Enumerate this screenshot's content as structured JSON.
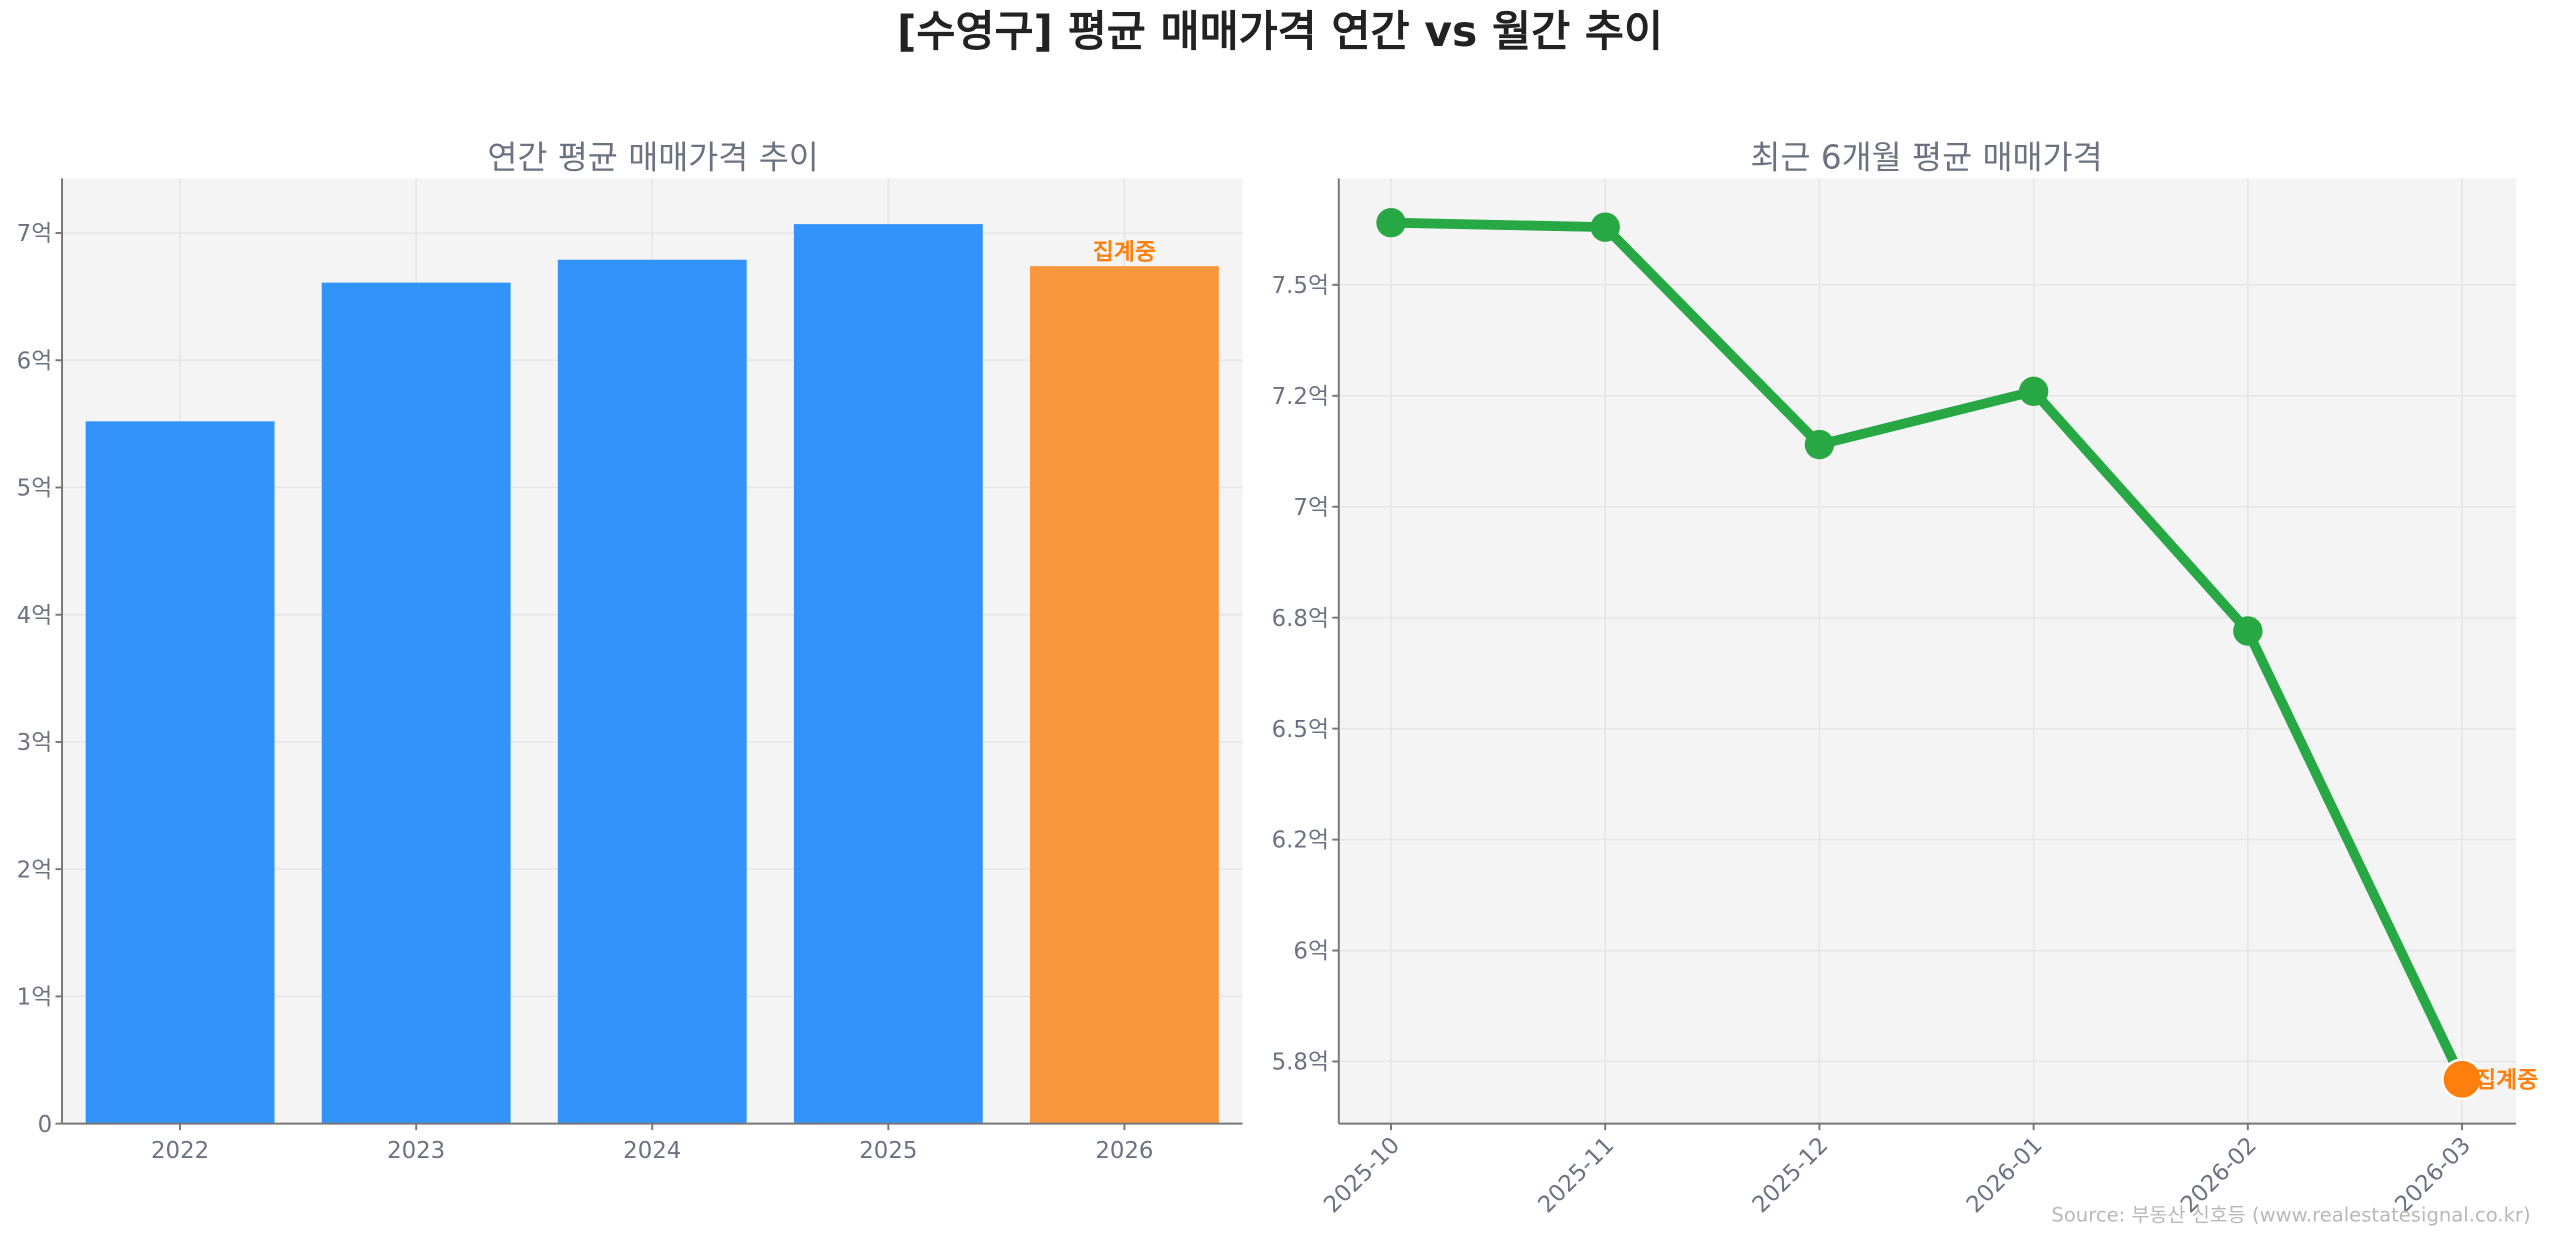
{
  "title": "[수영구] 평균 매매가격 연간 vs 월간 추이",
  "source": "Source: 부동산 신호등 (www.realestatesignal.co.kr)",
  "colors": {
    "bar": "#3293fb",
    "bar_partial": "#f9973f",
    "line": "#28a745",
    "partial_point": "#ff7f0e",
    "plot_bg": "#f4f4f4"
  },
  "chart_data": [
    {
      "type": "bar",
      "title": "연간 평균 매매가격 추이",
      "categories": [
        "2022",
        "2023",
        "2024",
        "2025",
        "2026"
      ],
      "values": [
        5.52,
        6.61,
        6.79,
        7.07,
        6.74
      ],
      "partial_index": 4,
      "partial_label": "집계중",
      "ylim": [
        0,
        7.43
      ],
      "yticks": [
        0,
        1,
        2,
        3,
        4,
        5,
        6,
        7
      ],
      "ytick_labels": [
        "0",
        "1억",
        "2억",
        "3억",
        "4억",
        "5억",
        "6억",
        "7억"
      ],
      "xlabel": "",
      "ylabel": "",
      "unit": "억",
      "grid": true
    },
    {
      "type": "line",
      "title": "최근 6개월 평균 매매가격",
      "categories": [
        "2025-10",
        "2025-11",
        "2025-12",
        "2026-01",
        "2026-02",
        "2026-03"
      ],
      "values": [
        7.64,
        7.63,
        7.14,
        7.26,
        6.72,
        5.71
      ],
      "partial_index": 5,
      "partial_label": "집계중",
      "ylim": [
        5.61,
        7.74
      ],
      "yticks": [
        5.75,
        6.0,
        6.25,
        6.5,
        6.75,
        7.0,
        7.25,
        7.5
      ],
      "ytick_labels": [
        "5.8억",
        "6억",
        "6.2억",
        "6.5억",
        "6.8억",
        "7억",
        "7.2억",
        "7.5억"
      ],
      "xlabel": "",
      "ylabel": "",
      "unit": "억",
      "grid": true
    }
  ]
}
